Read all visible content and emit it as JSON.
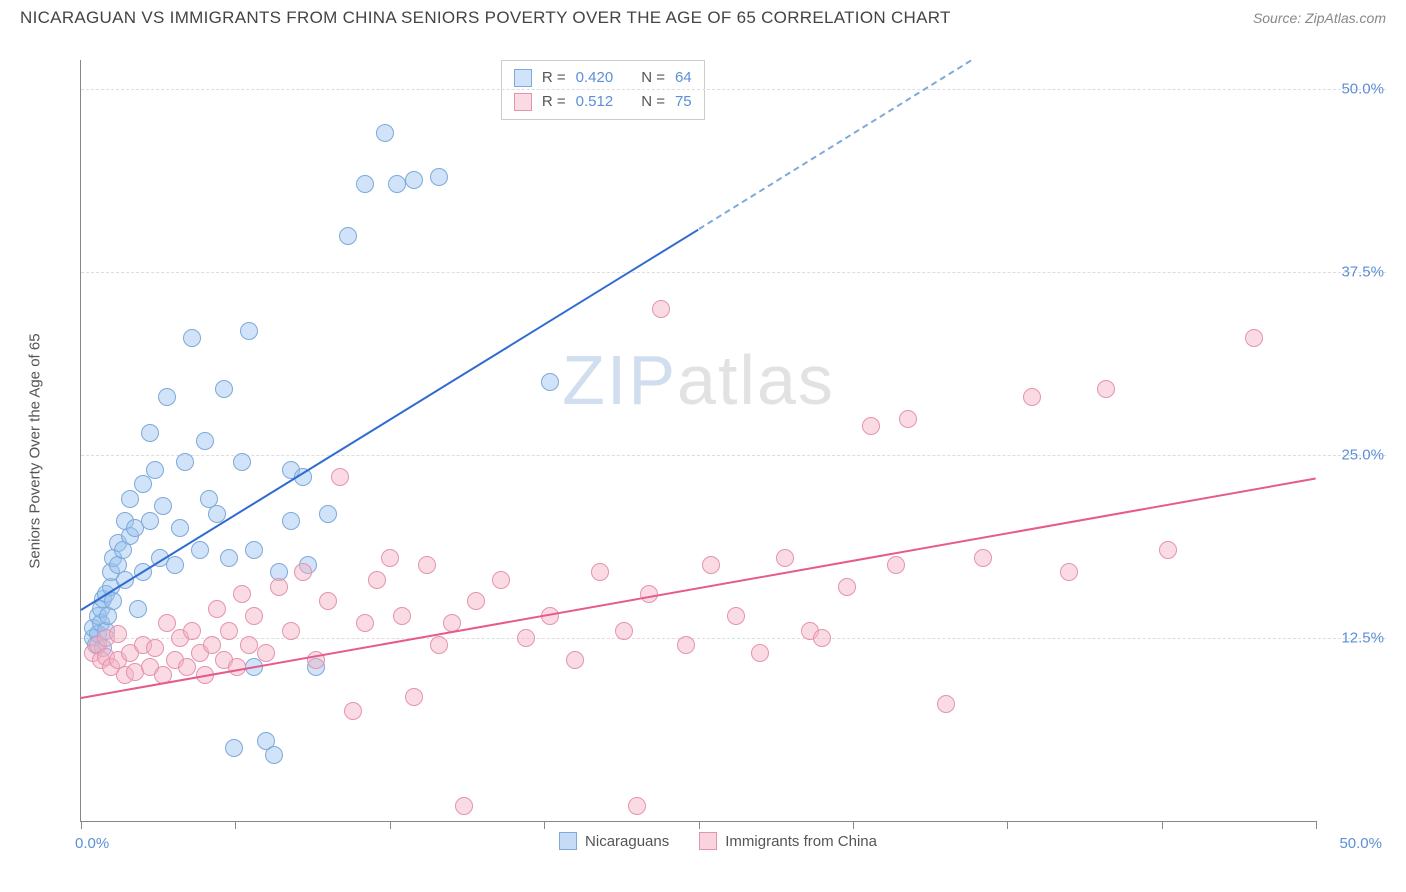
{
  "header": {
    "title": "NICARAGUAN VS IMMIGRANTS FROM CHINA SENIORS POVERTY OVER THE AGE OF 65 CORRELATION CHART",
    "source": "Source: ZipAtlas.com"
  },
  "chart": {
    "type": "scatter",
    "watermark": {
      "zip": "ZIP",
      "atlas": "atlas"
    },
    "ylabel": "Seniors Poverty Over the Age of 65",
    "xlim": [
      0,
      50
    ],
    "ylim": [
      0,
      52
    ],
    "x_min_label": "0.0%",
    "x_max_label": "50.0%",
    "y_ticks": [
      {
        "v": 12.5,
        "label": "12.5%"
      },
      {
        "v": 25.0,
        "label": "25.0%"
      },
      {
        "v": 37.5,
        "label": "37.5%"
      },
      {
        "v": 50.0,
        "label": "50.0%"
      }
    ],
    "x_ticks": [
      0,
      6.25,
      12.5,
      18.75,
      25,
      31.25,
      37.5,
      43.75,
      50
    ],
    "grid_color": "#dddddd",
    "background_color": "#ffffff",
    "marker_radius": 9,
    "series": [
      {
        "name": "Nicaraguans",
        "fill": "rgba(151,192,239,0.45)",
        "stroke": "#7fa9d8",
        "line_color": "#2f6bd0",
        "trend_dash_color": "#7fa9d8",
        "R_label": "R =",
        "R": "0.420",
        "N_label": "N =",
        "N": "64",
        "trend": {
          "x1": 0,
          "y1": 14.5,
          "x2": 25,
          "y2": 40.5,
          "dash_to_x": 36,
          "dash_to_y": 52
        },
        "points": [
          [
            0.5,
            12.5
          ],
          [
            0.5,
            13.2
          ],
          [
            0.6,
            12.0
          ],
          [
            0.7,
            14.0
          ],
          [
            0.7,
            12.8
          ],
          [
            0.8,
            13.5
          ],
          [
            0.8,
            14.5
          ],
          [
            0.9,
            15.2
          ],
          [
            0.9,
            11.8
          ],
          [
            1.0,
            13.0
          ],
          [
            1.0,
            15.5
          ],
          [
            1.1,
            14.0
          ],
          [
            1.2,
            16.0
          ],
          [
            1.2,
            17.0
          ],
          [
            1.3,
            15.0
          ],
          [
            1.3,
            18.0
          ],
          [
            1.5,
            17.5
          ],
          [
            1.5,
            19.0
          ],
          [
            1.7,
            18.5
          ],
          [
            1.8,
            16.5
          ],
          [
            1.8,
            20.5
          ],
          [
            2.0,
            19.5
          ],
          [
            2.0,
            22.0
          ],
          [
            2.2,
            20.0
          ],
          [
            2.3,
            14.5
          ],
          [
            2.5,
            23.0
          ],
          [
            2.5,
            17.0
          ],
          [
            2.8,
            20.5
          ],
          [
            2.8,
            26.5
          ],
          [
            3.0,
            24.0
          ],
          [
            3.2,
            18.0
          ],
          [
            3.3,
            21.5
          ],
          [
            3.5,
            29.0
          ],
          [
            3.8,
            17.5
          ],
          [
            4.0,
            20.0
          ],
          [
            4.2,
            24.5
          ],
          [
            4.5,
            33.0
          ],
          [
            4.8,
            18.5
          ],
          [
            5.0,
            26.0
          ],
          [
            5.2,
            22.0
          ],
          [
            5.5,
            21.0
          ],
          [
            5.8,
            29.5
          ],
          [
            6.0,
            18.0
          ],
          [
            6.2,
            5.0
          ],
          [
            6.5,
            24.5
          ],
          [
            6.8,
            33.5
          ],
          [
            7.0,
            18.5
          ],
          [
            7.0,
            10.5
          ],
          [
            7.5,
            5.5
          ],
          [
            7.8,
            4.5
          ],
          [
            8.0,
            17.0
          ],
          [
            8.5,
            24.0
          ],
          [
            9.0,
            23.5
          ],
          [
            9.5,
            10.5
          ],
          [
            10.8,
            40.0
          ],
          [
            11.5,
            43.5
          ],
          [
            12.3,
            47.0
          ],
          [
            12.8,
            43.5
          ],
          [
            13.5,
            43.8
          ],
          [
            14.5,
            44.0
          ],
          [
            19.0,
            30.0
          ],
          [
            8.5,
            20.5
          ],
          [
            9.2,
            17.5
          ],
          [
            10.0,
            21.0
          ]
        ]
      },
      {
        "name": "Immigrants from China",
        "fill": "rgba(244,176,196,0.45)",
        "stroke": "#e394ae",
        "line_color": "#e75a8c",
        "R_label": "R =",
        "R": "0.512",
        "N_label": "N =",
        "N": "75",
        "trend": {
          "x1": 0,
          "y1": 8.5,
          "x2": 50,
          "y2": 23.5
        },
        "points": [
          [
            0.5,
            11.5
          ],
          [
            0.7,
            12.0
          ],
          [
            0.8,
            11.0
          ],
          [
            1.0,
            12.5
          ],
          [
            1.0,
            11.2
          ],
          [
            1.2,
            10.5
          ],
          [
            1.5,
            11.0
          ],
          [
            1.5,
            12.8
          ],
          [
            1.8,
            10.0
          ],
          [
            2.0,
            11.5
          ],
          [
            2.2,
            10.2
          ],
          [
            2.5,
            12.0
          ],
          [
            2.8,
            10.5
          ],
          [
            3.0,
            11.8
          ],
          [
            3.3,
            10.0
          ],
          [
            3.5,
            13.5
          ],
          [
            3.8,
            11.0
          ],
          [
            4.0,
            12.5
          ],
          [
            4.3,
            10.5
          ],
          [
            4.5,
            13.0
          ],
          [
            4.8,
            11.5
          ],
          [
            5.0,
            10.0
          ],
          [
            5.3,
            12.0
          ],
          [
            5.5,
            14.5
          ],
          [
            5.8,
            11.0
          ],
          [
            6.0,
            13.0
          ],
          [
            6.3,
            10.5
          ],
          [
            6.5,
            15.5
          ],
          [
            6.8,
            12.0
          ],
          [
            7.0,
            14.0
          ],
          [
            7.5,
            11.5
          ],
          [
            8.0,
            16.0
          ],
          [
            8.5,
            13.0
          ],
          [
            9.0,
            17.0
          ],
          [
            9.5,
            11.0
          ],
          [
            10.0,
            15.0
          ],
          [
            10.5,
            23.5
          ],
          [
            11.0,
            7.5
          ],
          [
            11.5,
            13.5
          ],
          [
            12.0,
            16.5
          ],
          [
            12.5,
            18.0
          ],
          [
            13.0,
            14.0
          ],
          [
            13.5,
            8.5
          ],
          [
            14.0,
            17.5
          ],
          [
            14.5,
            12.0
          ],
          [
            15.5,
            1.0
          ],
          [
            15.0,
            13.5
          ],
          [
            16.0,
            15.0
          ],
          [
            17.0,
            16.5
          ],
          [
            18.0,
            12.5
          ],
          [
            19.0,
            14.0
          ],
          [
            20.0,
            11.0
          ],
          [
            21.0,
            17.0
          ],
          [
            22.0,
            13.0
          ],
          [
            22.5,
            1.0
          ],
          [
            23.0,
            15.5
          ],
          [
            23.5,
            35.0
          ],
          [
            24.5,
            12.0
          ],
          [
            25.5,
            17.5
          ],
          [
            26.5,
            14.0
          ],
          [
            27.5,
            11.5
          ],
          [
            28.5,
            18.0
          ],
          [
            29.5,
            13.0
          ],
          [
            31.0,
            16.0
          ],
          [
            32.0,
            27.0
          ],
          [
            33.0,
            17.5
          ],
          [
            33.5,
            27.5
          ],
          [
            35.0,
            8.0
          ],
          [
            36.5,
            18.0
          ],
          [
            38.5,
            29.0
          ],
          [
            40.0,
            17.0
          ],
          [
            41.5,
            29.5
          ],
          [
            44.0,
            18.5
          ],
          [
            47.5,
            33.0
          ],
          [
            30.0,
            12.5
          ]
        ]
      }
    ],
    "bottom_legend": [
      {
        "label": "Nicaraguans",
        "fill": "rgba(151,192,239,0.55)",
        "stroke": "#7fa9d8"
      },
      {
        "label": "Immigrants from China",
        "fill": "rgba(244,176,196,0.55)",
        "stroke": "#e394ae"
      }
    ]
  }
}
